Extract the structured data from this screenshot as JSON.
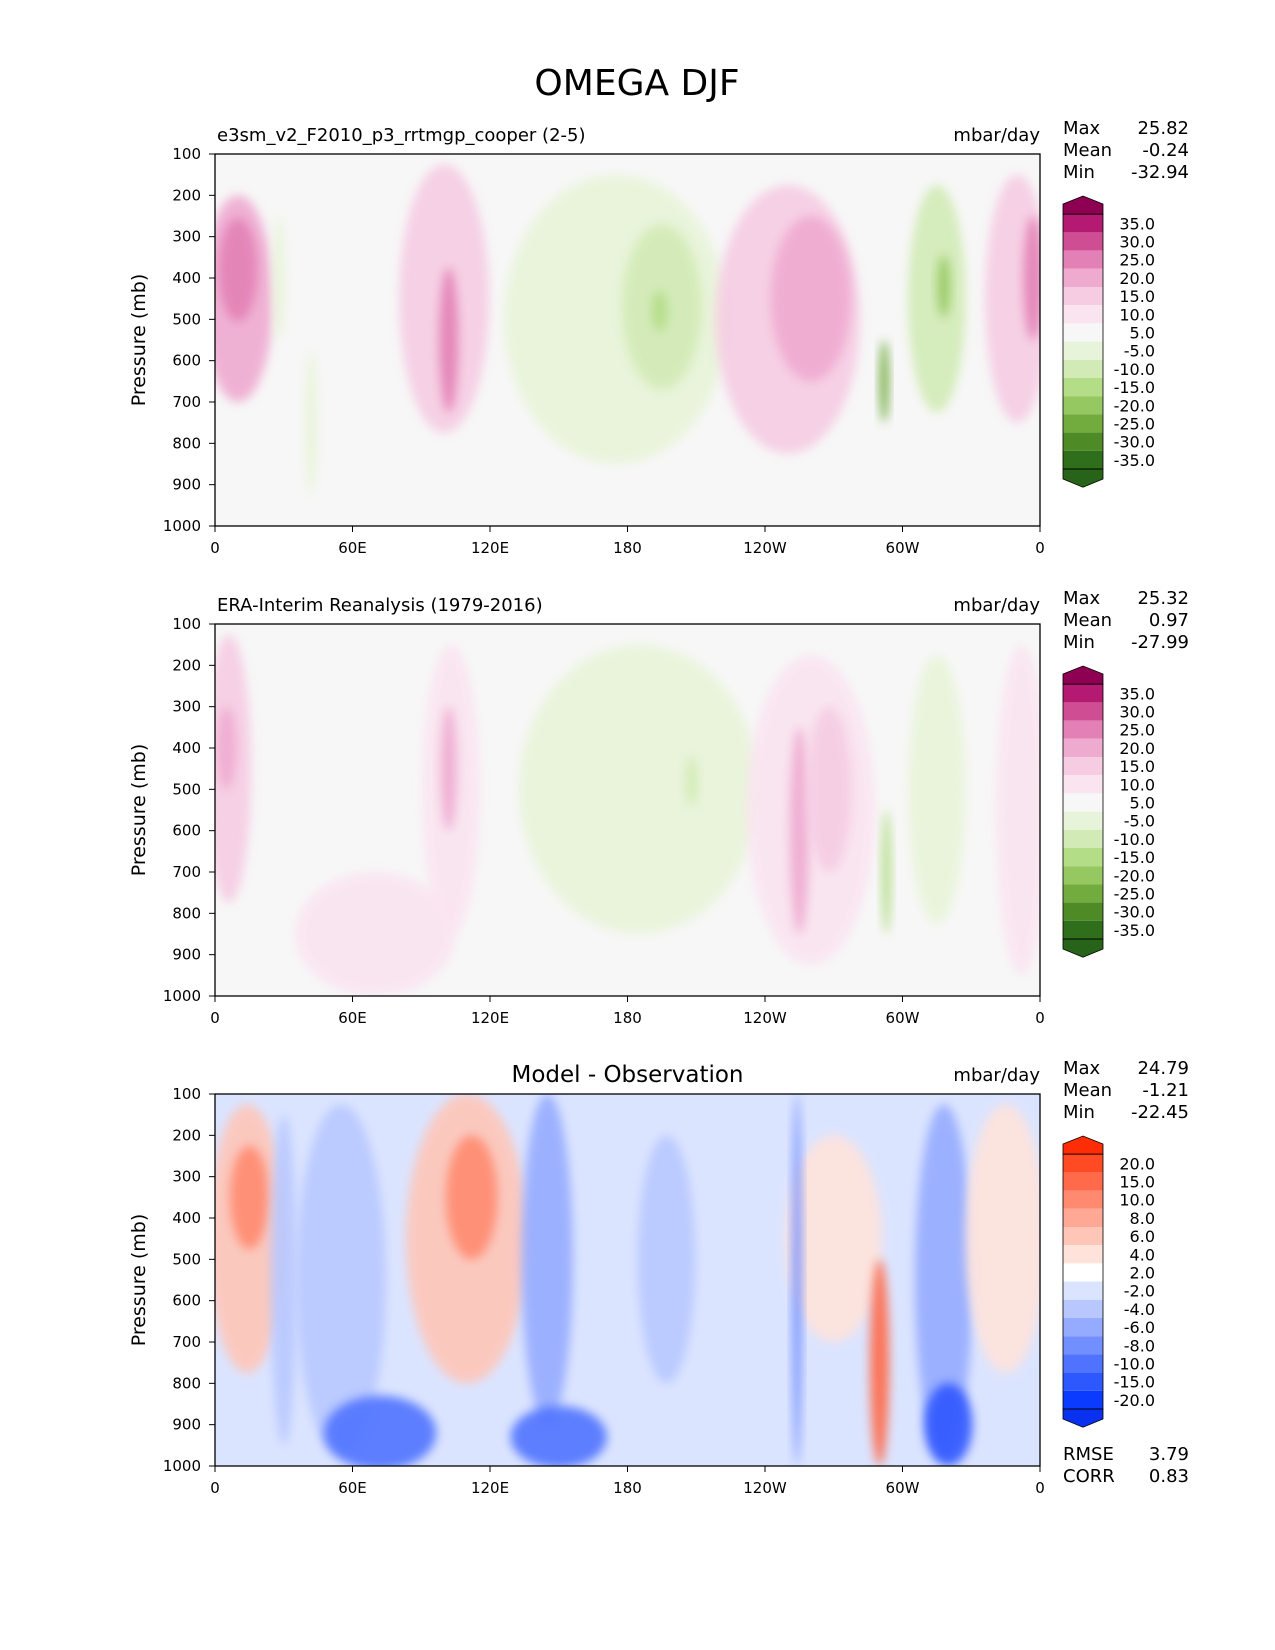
{
  "figure_title": "OMEGA DJF",
  "chart_data": [
    {
      "type": "contour",
      "title": "e3sm_v2_F2010_p3_rrtmgp_cooper (2-5)",
      "title_position": "left",
      "units": "mbar/day",
      "ylabel": "Pressure (mb)",
      "yticks": [
        "100",
        "200",
        "300",
        "400",
        "500",
        "600",
        "700",
        "800",
        "900",
        "1000"
      ],
      "xticks": [
        "0",
        "60E",
        "120E",
        "180",
        "120W",
        "60W",
        "0"
      ],
      "xlim": [
        0,
        360
      ],
      "ylim": [
        1000,
        100
      ],
      "stats": [
        {
          "label": "Max",
          "value": "25.82"
        },
        {
          "label": "Mean",
          "value": "-0.24"
        },
        {
          "label": "Min",
          "value": "-32.94"
        }
      ],
      "colorbar": {
        "labels": [
          "35.0",
          "30.0",
          "25.0",
          "20.0",
          "15.0",
          "10.0",
          "5.0",
          "-5.0",
          "-10.0",
          "-15.0",
          "-20.0",
          "-25.0",
          "-30.0",
          "-35.0"
        ],
        "colors": [
          "#8e0152",
          "#b41a72",
          "#cf4d93",
          "#e381b6",
          "#efaad0",
          "#f6cce3",
          "#fae4f0",
          "#f7f7f7",
          "#e8f4d9",
          "#d2ebb6",
          "#b4dd88",
          "#95c860",
          "#72ac3f",
          "#4e8b27",
          "#2f6e1a",
          "#276419"
        ]
      },
      "extra_stats": [],
      "fields": [
        {
          "name": "pink band near 10E",
          "color_index": 4,
          "x": 10,
          "p": 450,
          "w": 22,
          "h": 500
        },
        {
          "name": "pink core 10E",
          "color_index": 3,
          "x": 10,
          "p": 380,
          "w": 12,
          "h": 250
        },
        {
          "name": "pink band 100E",
          "color_index": 5,
          "x": 100,
          "p": 450,
          "w": 28,
          "h": 650
        },
        {
          "name": "pink core 100E",
          "color_index": 3,
          "x": 102,
          "p": 550,
          "w": 6,
          "h": 350
        },
        {
          "name": "green band dateline",
          "color_index": 8,
          "x": 175,
          "p": 500,
          "w": 70,
          "h": 700
        },
        {
          "name": "green core 165W",
          "color_index": 9,
          "x": 195,
          "p": 470,
          "w": 25,
          "h": 400
        },
        {
          "name": "green core 165W inner",
          "color_index": 10,
          "x": 194,
          "p": 480,
          "w": 5,
          "h": 100
        },
        {
          "name": "pink band 100W",
          "color_index": 5,
          "x": 250,
          "p": 500,
          "w": 45,
          "h": 650
        },
        {
          "name": "pink core 95W",
          "color_index": 4,
          "x": 260,
          "p": 450,
          "w": 25,
          "h": 400
        },
        {
          "name": "green streak 65W",
          "color_index": 12,
          "x": 292,
          "p": 650,
          "w": 3,
          "h": 200
        },
        {
          "name": "green band 40W",
          "color_index": 9,
          "x": 315,
          "p": 450,
          "w": 18,
          "h": 550
        },
        {
          "name": "green core 40W",
          "color_index": 11,
          "x": 318,
          "p": 420,
          "w": 4,
          "h": 150
        },
        {
          "name": "pink band 10W",
          "color_index": 5,
          "x": 350,
          "p": 450,
          "w": 20,
          "h": 600
        },
        {
          "name": "pink core 3W",
          "color_index": 3,
          "x": 357,
          "p": 400,
          "w": 6,
          "h": 300
        },
        {
          "name": "green streak 30E",
          "color_index": 8,
          "x": 28,
          "p": 400,
          "w": 4,
          "h": 300
        },
        {
          "name": "green streak 40E",
          "color_index": 8,
          "x": 42,
          "p": 750,
          "w": 4,
          "h": 350
        }
      ]
    },
    {
      "type": "contour",
      "title": "ERA-Interim Reanalysis (1979-2016)",
      "title_position": "left",
      "units": "mbar/day",
      "ylabel": "Pressure (mb)",
      "yticks": [
        "100",
        "200",
        "300",
        "400",
        "500",
        "600",
        "700",
        "800",
        "900",
        "1000"
      ],
      "xticks": [
        "0",
        "60E",
        "120E",
        "180",
        "120W",
        "60W",
        "0"
      ],
      "xlim": [
        0,
        360
      ],
      "ylim": [
        1000,
        100
      ],
      "stats": [
        {
          "label": "Max",
          "value": "25.32"
        },
        {
          "label": "Mean",
          "value": "0.97"
        },
        {
          "label": "Min",
          "value": "-27.99"
        }
      ],
      "colorbar": {
        "labels": [
          "35.0",
          "30.0",
          "25.0",
          "20.0",
          "15.0",
          "10.0",
          "5.0",
          "-5.0",
          "-10.0",
          "-15.0",
          "-20.0",
          "-25.0",
          "-30.0",
          "-35.0"
        ],
        "colors": [
          "#8e0152",
          "#b41a72",
          "#cf4d93",
          "#e381b6",
          "#efaad0",
          "#f6cce3",
          "#fae4f0",
          "#f7f7f7",
          "#e8f4d9",
          "#d2ebb6",
          "#b4dd88",
          "#95c860",
          "#72ac3f",
          "#4e8b27",
          "#2f6e1a",
          "#276419"
        ]
      },
      "extra_stats": [],
      "fields": [
        {
          "name": "pink band 5E",
          "color_index": 5,
          "x": 6,
          "p": 450,
          "w": 14,
          "h": 650
        },
        {
          "name": "pink core 5E",
          "color_index": 4,
          "x": 5,
          "p": 400,
          "w": 6,
          "h": 200
        },
        {
          "name": "pink band 100E",
          "color_index": 6,
          "x": 103,
          "p": 500,
          "w": 18,
          "h": 700
        },
        {
          "name": "pink core 100E",
          "color_index": 4,
          "x": 102,
          "p": 450,
          "w": 5,
          "h": 300
        },
        {
          "name": "pink lower 70E",
          "color_index": 6,
          "x": 70,
          "p": 850,
          "w": 50,
          "h": 300
        },
        {
          "name": "green band dateline",
          "color_index": 8,
          "x": 185,
          "p": 500,
          "w": 75,
          "h": 700
        },
        {
          "name": "green core 175W",
          "color_index": 9,
          "x": 208,
          "p": 480,
          "w": 4,
          "h": 120
        },
        {
          "name": "pink band 100W",
          "color_index": 6,
          "x": 260,
          "p": 550,
          "w": 40,
          "h": 750
        },
        {
          "name": "pink core 100W",
          "color_index": 4,
          "x": 255,
          "p": 600,
          "w": 6,
          "h": 500
        },
        {
          "name": "pink core 93W",
          "color_index": 5,
          "x": 268,
          "p": 500,
          "w": 14,
          "h": 400
        },
        {
          "name": "green streak 65W",
          "color_index": 10,
          "x": 293,
          "p": 700,
          "w": 3,
          "h": 300
        },
        {
          "name": "green band 40W",
          "color_index": 8,
          "x": 315,
          "p": 500,
          "w": 18,
          "h": 650
        },
        {
          "name": "pink band 0W",
          "color_index": 6,
          "x": 352,
          "p": 550,
          "w": 16,
          "h": 800
        }
      ]
    },
    {
      "type": "contour",
      "title": "Model - Observation",
      "title_position": "center",
      "units": "mbar/day",
      "ylabel": "Pressure (mb)",
      "yticks": [
        "100",
        "200",
        "300",
        "400",
        "500",
        "600",
        "700",
        "800",
        "900",
        "1000"
      ],
      "xticks": [
        "0",
        "60E",
        "120E",
        "180",
        "120W",
        "60W",
        "0"
      ],
      "xlim": [
        0,
        360
      ],
      "ylim": [
        1000,
        100
      ],
      "stats": [
        {
          "label": "Max",
          "value": "24.79"
        },
        {
          "label": "Mean",
          "value": "-1.21"
        },
        {
          "label": "Min",
          "value": "-22.45"
        }
      ],
      "colorbar": {
        "labels": [
          "20.0",
          "15.0",
          "10.0",
          "8.0",
          "6.0",
          "4.0",
          "2.0",
          "-2.0",
          "-4.0",
          "-6.0",
          "-8.0",
          "-10.0",
          "-15.0",
          "-20.0"
        ],
        "colors": [
          "#ff2d06",
          "#ff4a24",
          "#ff6a4a",
          "#ff8a70",
          "#ffa895",
          "#ffc6b8",
          "#ffe3db",
          "#ffffff",
          "#dbe4ff",
          "#b8c8ff",
          "#95abff",
          "#728fff",
          "#5073ff",
          "#2d57ff",
          "#0a3bff",
          "#0a30f0"
        ]
      },
      "extra_stats": [
        {
          "label": "RMSE",
          "value": "3.79"
        },
        {
          "label": "CORR",
          "value": "0.83"
        }
      ],
      "fields": [
        {
          "name": "red band 15E",
          "color_index": 5,
          "x": 14,
          "p": 450,
          "w": 24,
          "h": 650
        },
        {
          "name": "red core 15E",
          "color_index": 3,
          "x": 15,
          "p": 350,
          "w": 12,
          "h": 250
        },
        {
          "name": "blue band 30E",
          "color_index": 9,
          "x": 30,
          "p": 550,
          "w": 8,
          "h": 800
        },
        {
          "name": "blue band 55E",
          "color_index": 9,
          "x": 55,
          "p": 550,
          "w": 28,
          "h": 850
        },
        {
          "name": "blue lower 70E",
          "color_index": 12,
          "x": 72,
          "p": 920,
          "w": 35,
          "h": 180
        },
        {
          "name": "red band 110E",
          "color_index": 5,
          "x": 110,
          "p": 450,
          "w": 38,
          "h": 700
        },
        {
          "name": "red core 110E",
          "color_index": 3,
          "x": 112,
          "p": 350,
          "w": 16,
          "h": 300
        },
        {
          "name": "blue band 145E",
          "color_index": 10,
          "x": 145,
          "p": 500,
          "w": 16,
          "h": 800
        },
        {
          "name": "blue lower 145E",
          "color_index": 12,
          "x": 150,
          "p": 930,
          "w": 30,
          "h": 150
        },
        {
          "name": "blue band 165W",
          "color_index": 9,
          "x": 197,
          "p": 500,
          "w": 18,
          "h": 600
        },
        {
          "name": "red band 90W",
          "color_index": 6,
          "x": 270,
          "p": 450,
          "w": 30,
          "h": 500
        },
        {
          "name": "blue streak 110W",
          "color_index": 11,
          "x": 254,
          "p": 550,
          "w": 3,
          "h": 900
        },
        {
          "name": "red streak 65W",
          "color_index": 2,
          "x": 290,
          "p": 750,
          "w": 6,
          "h": 500
        },
        {
          "name": "blue band 40W",
          "color_index": 10,
          "x": 318,
          "p": 550,
          "w": 18,
          "h": 850
        },
        {
          "name": "blue lower 40W",
          "color_index": 13,
          "x": 320,
          "p": 900,
          "w": 15,
          "h": 200
        },
        {
          "name": "red band 15W",
          "color_index": 6,
          "x": 345,
          "p": 450,
          "w": 25,
          "h": 650
        }
      ]
    }
  ]
}
